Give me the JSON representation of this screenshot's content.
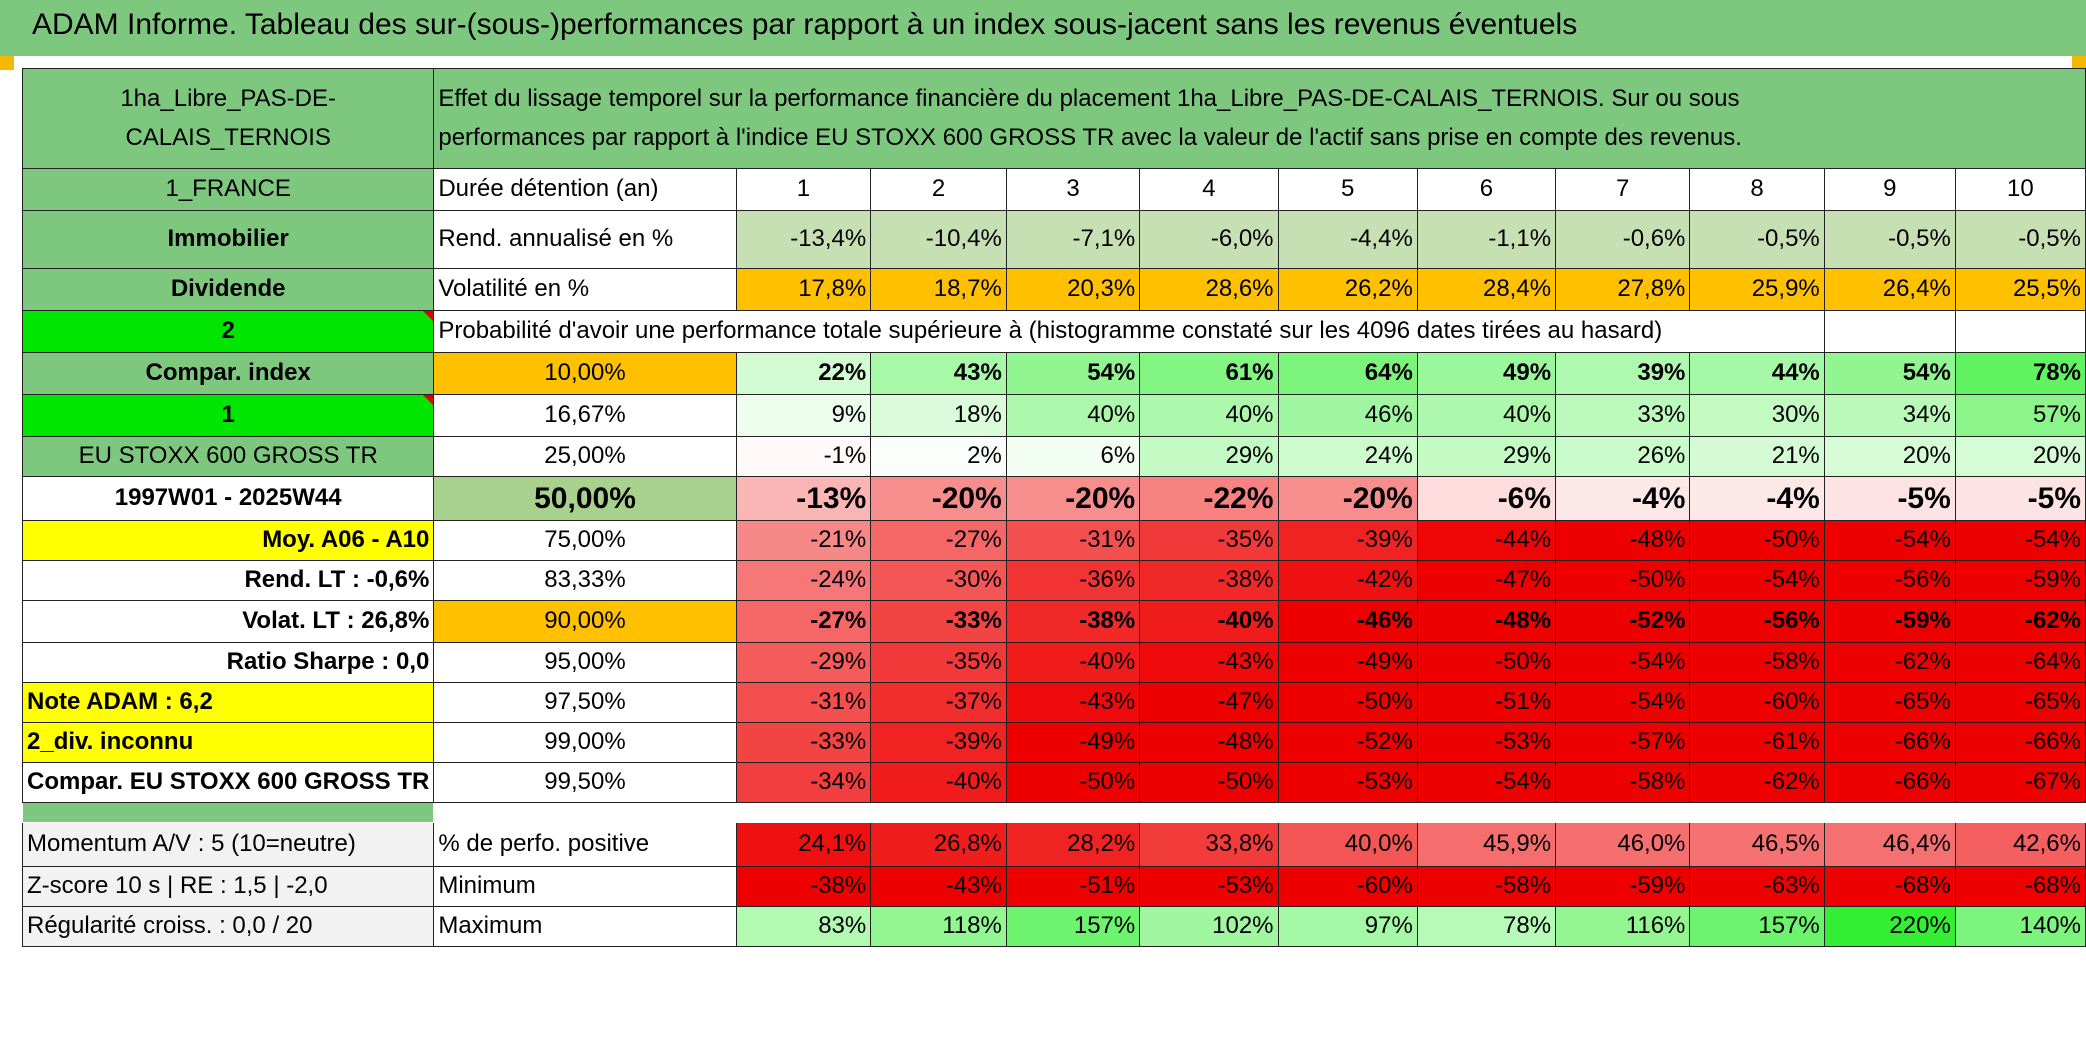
{
  "header": {
    "title": "ADAM Informe. Tableau des sur-(sous-)performances par rapport à un index sous-jacent sans les revenus éventuels"
  },
  "colors": {
    "title_bg": "#7ec77e",
    "label_bg": "#7ec77e",
    "bright_green": "#00e600",
    "yellow": "#ffff00",
    "orange": "#ffc000",
    "red_text": "#e00000"
  },
  "left": {
    "fund_name_line1": "1ha_Libre_PAS-DE-",
    "fund_name_line2": "CALAIS_TERNOIS",
    "country": "1_FRANCE",
    "asset_class": "Immobilier",
    "income_type": "Dividende",
    "badge1": "2",
    "compar_index": "Compar. index",
    "badge2": "1",
    "index_name": "EU STOXX 600 GROSS TR",
    "period": "1997W01 - 2025W44",
    "moy_label": "Moy. A06 - A10",
    "rend_lt": "Rend. LT :    -0,6%",
    "volat_lt": "Volat. LT :    26,8%",
    "sharpe": "Ratio Sharpe :    0,0",
    "note": "Note ADAM : 6,2",
    "div": "2_div. inconnu",
    "compar_full": "Compar. EU STOXX 600 GROSS TR",
    "momentum": "Momentum A/V : 5 (10=neutre)",
    "zscore": "Z-score 10 s | RE : 1,5 | -2,0",
    "regularite": "Régularité croiss. : 0,0 / 20"
  },
  "description": {
    "line1": "Effet du lissage temporel sur la performance financière du placement 1ha_Libre_PAS-DE-CALAIS_TERNOIS. Sur ou sous",
    "line2": "performances par rapport à l'indice EU STOXX 600 GROSS TR avec la valeur de l'actif sans prise en compte des revenus."
  },
  "labels": {
    "duration": "Durée détention (an)",
    "return": "Rend. annualisé en %",
    "volatility": "Volatilité en %",
    "probability": "Probabilité d'avoir une performance totale supérieure à (histogramme constaté sur les 4096 dates tirées au hasard)",
    "pct_positive": "% de perfo. positive",
    "minimum": "Minimum",
    "maximum": "Maximum"
  },
  "years": [
    "1",
    "2",
    "3",
    "4",
    "5",
    "6",
    "7",
    "8",
    "9",
    "10"
  ],
  "returns": [
    "-13,4%",
    "-10,4%",
    "-7,1%",
    "-6,0%",
    "-4,4%",
    "-1,1%",
    "-0,6%",
    "-0,5%",
    "-0,5%",
    "-0,5%"
  ],
  "volatility": [
    "17,8%",
    "18,7%",
    "20,3%",
    "28,6%",
    "26,2%",
    "28,4%",
    "27,8%",
    "25,9%",
    "26,4%",
    "25,5%"
  ],
  "quantile_rows": [
    {
      "label": "10,00%",
      "values": [
        "22%",
        "43%",
        "54%",
        "61%",
        "64%",
        "49%",
        "39%",
        "44%",
        "54%",
        "78%"
      ]
    },
    {
      "label": "16,67%",
      "values": [
        "9%",
        "18%",
        "40%",
        "40%",
        "46%",
        "40%",
        "33%",
        "30%",
        "34%",
        "57%"
      ]
    },
    {
      "label": "25,00%",
      "values": [
        "-1%",
        "2%",
        "6%",
        "29%",
        "24%",
        "29%",
        "26%",
        "21%",
        "20%",
        "20%"
      ]
    },
    {
      "label": "50,00%",
      "values": [
        "-13%",
        "-20%",
        "-20%",
        "-22%",
        "-20%",
        "-6%",
        "-4%",
        "-4%",
        "-5%",
        "-5%"
      ]
    },
    {
      "label": "75,00%",
      "values": [
        "-21%",
        "-27%",
        "-31%",
        "-35%",
        "-39%",
        "-44%",
        "-48%",
        "-50%",
        "-54%",
        "-54%"
      ]
    },
    {
      "label": "83,33%",
      "values": [
        "-24%",
        "-30%",
        "-36%",
        "-38%",
        "-42%",
        "-47%",
        "-50%",
        "-54%",
        "-56%",
        "-59%"
      ]
    },
    {
      "label": "90,00%",
      "values": [
        "-27%",
        "-33%",
        "-38%",
        "-40%",
        "-46%",
        "-48%",
        "-52%",
        "-56%",
        "-59%",
        "-62%"
      ]
    },
    {
      "label": "95,00%",
      "values": [
        "-29%",
        "-35%",
        "-40%",
        "-43%",
        "-49%",
        "-50%",
        "-54%",
        "-58%",
        "-62%",
        "-64%"
      ]
    },
    {
      "label": "97,50%",
      "values": [
        "-31%",
        "-37%",
        "-43%",
        "-47%",
        "-50%",
        "-51%",
        "-54%",
        "-60%",
        "-65%",
        "-65%"
      ]
    },
    {
      "label": "99,00%",
      "values": [
        "-33%",
        "-39%",
        "-49%",
        "-48%",
        "-52%",
        "-53%",
        "-57%",
        "-61%",
        "-66%",
        "-66%"
      ]
    },
    {
      "label": "99,50%",
      "values": [
        "-34%",
        "-40%",
        "-50%",
        "-50%",
        "-53%",
        "-54%",
        "-58%",
        "-62%",
        "-66%",
        "-67%"
      ]
    }
  ],
  "pct_positive": [
    "24,1%",
    "26,8%",
    "28,2%",
    "33,8%",
    "40,0%",
    "45,9%",
    "46,0%",
    "46,5%",
    "46,4%",
    "42,6%"
  ],
  "minimum": [
    "-38%",
    "-43%",
    "-51%",
    "-53%",
    "-60%",
    "-58%",
    "-59%",
    "-63%",
    "-68%",
    "-68%"
  ],
  "maximum": [
    "83%",
    "118%",
    "157%",
    "102%",
    "97%",
    "78%",
    "116%",
    "157%",
    "220%",
    "140%"
  ]
}
